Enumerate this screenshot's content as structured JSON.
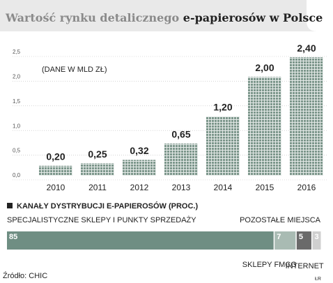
{
  "chart_data": [
    {
      "type": "bar",
      "title": "Wartość rynku detalicznego",
      "title_highlight": "e-papierosów w Polsce",
      "subtitle": "(DANE W MLD ZŁ)",
      "categories": [
        "2010",
        "2011",
        "2012",
        "2013",
        "2014",
        "2015",
        "2016"
      ],
      "values": [
        0.2,
        0.25,
        0.32,
        0.65,
        1.2,
        2.0,
        2.4
      ],
      "value_labels": [
        "0,20",
        "0,25",
        "0,32",
        "0,65",
        "1,20",
        "2,00",
        "2,40"
      ],
      "color": "#7d978c",
      "ylim": [
        0,
        2.5
      ],
      "yticks": [
        {
          "value": 0,
          "label": "0,0"
        },
        {
          "value": 0.5,
          "label": "0,5"
        },
        {
          "value": 1,
          "label": "1,0"
        },
        {
          "value": 1.5,
          "label": "1,5"
        },
        {
          "value": 2,
          "label": "2,0"
        },
        {
          "value": 2.5,
          "label": "2,5"
        }
      ],
      "grid": true
    },
    {
      "type": "stacked-hbar",
      "title": "KANAŁY DYSTRYBUCJI E-PAPIEROSÓW (PROC.)",
      "series": [
        {
          "name": "SPECJALISTYCZNE SKLEPY I PUNKTY SPRZEDAŻY",
          "color": "#6f8e83",
          "values": [
            85
          ]
        },
        {
          "name": "SKLEPY FMCG",
          "color": "#a9bbb3",
          "values": [
            7
          ]
        },
        {
          "name": "INTERNET",
          "color": "#6a6a6a",
          "values": [
            5
          ]
        },
        {
          "name": "POZOSTAŁE MIEJSCA",
          "color": "#cfcfcf",
          "values": [
            3
          ]
        }
      ]
    }
  ],
  "source": "Źródło: CHIC",
  "credit": "ŁR"
}
